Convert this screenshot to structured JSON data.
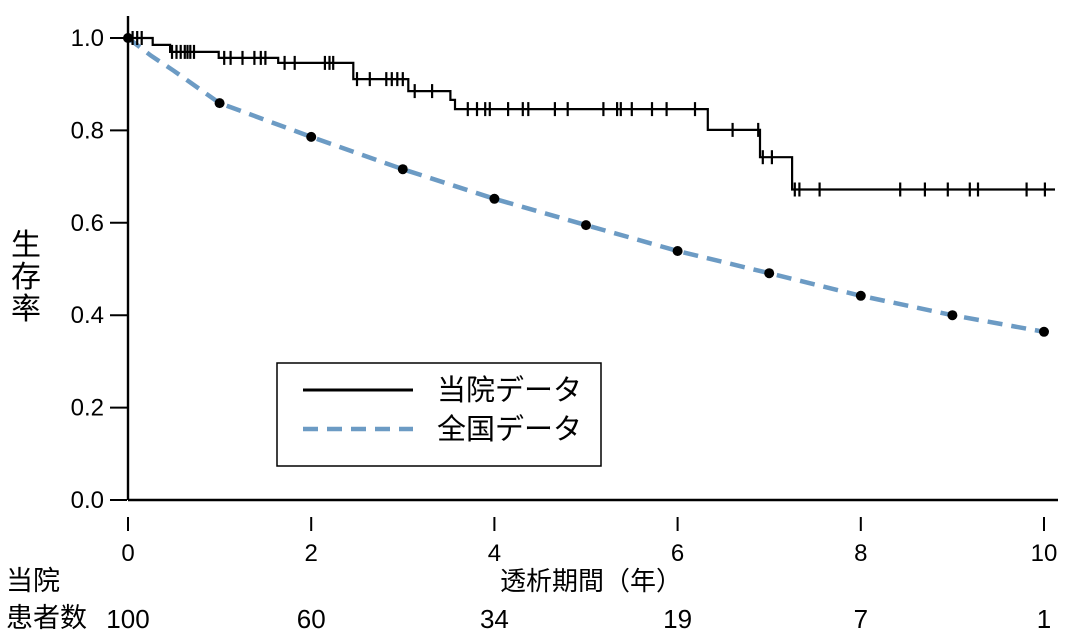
{
  "chart_data": {
    "type": "line",
    "subtype": "kaplan_meier_survival",
    "title": "",
    "xlabel": "透析期間（年）",
    "ylabel": "生存率",
    "xlim": [
      0,
      10.3
    ],
    "ylim": [
      0.0,
      1.04
    ],
    "grid": false,
    "legend_position": "inside-lower-left-box",
    "x_ticks": [
      0,
      2,
      4,
      6,
      8,
      10
    ],
    "x_tick_labels": [
      "0",
      "2",
      "4",
      "6",
      "8",
      "10"
    ],
    "y_ticks": [
      0.0,
      0.2,
      0.4,
      0.6,
      0.8,
      1.0
    ],
    "y_tick_labels": [
      "0.0",
      "0.2",
      "0.4",
      "0.6",
      "0.8",
      "1.0"
    ],
    "series": [
      {
        "name": "当院データ",
        "kind": "step",
        "line_style": "solid",
        "color": "#000000",
        "steps": [
          [
            0.0,
            1.0
          ],
          [
            0.27,
            0.985
          ],
          [
            0.46,
            0.97
          ],
          [
            0.99,
            0.957
          ],
          [
            1.64,
            0.946
          ],
          [
            2.46,
            0.911
          ],
          [
            3.06,
            0.885
          ],
          [
            3.52,
            0.866
          ],
          [
            3.57,
            0.846
          ],
          [
            6.33,
            0.801
          ],
          [
            6.9,
            0.742
          ],
          [
            7.25,
            0.672
          ]
        ],
        "end_x": 10.12,
        "censor_marks": [
          [
            0.05,
            1.0
          ],
          [
            0.1,
            1.0
          ],
          [
            0.15,
            1.0
          ],
          [
            0.48,
            0.97
          ],
          [
            0.53,
            0.97
          ],
          [
            0.575,
            0.97
          ],
          [
            0.62,
            0.97
          ],
          [
            0.65,
            0.97
          ],
          [
            0.68,
            0.97
          ],
          [
            0.72,
            0.97
          ],
          [
            1.05,
            0.957
          ],
          [
            1.12,
            0.957
          ],
          [
            1.25,
            0.957
          ],
          [
            1.38,
            0.957
          ],
          [
            1.45,
            0.957
          ],
          [
            1.5,
            0.957
          ],
          [
            1.71,
            0.946
          ],
          [
            1.82,
            0.946
          ],
          [
            2.15,
            0.946
          ],
          [
            2.2,
            0.946
          ],
          [
            2.24,
            0.946
          ],
          [
            2.5,
            0.911
          ],
          [
            2.64,
            0.911
          ],
          [
            2.82,
            0.911
          ],
          [
            2.88,
            0.911
          ],
          [
            2.94,
            0.911
          ],
          [
            3.0,
            0.911
          ],
          [
            3.13,
            0.885
          ],
          [
            3.32,
            0.885
          ],
          [
            3.71,
            0.846
          ],
          [
            3.81,
            0.846
          ],
          [
            3.9,
            0.846
          ],
          [
            3.95,
            0.846
          ],
          [
            4.15,
            0.846
          ],
          [
            4.31,
            0.846
          ],
          [
            4.37,
            0.846
          ],
          [
            4.66,
            0.846
          ],
          [
            4.8,
            0.846
          ],
          [
            5.19,
            0.846
          ],
          [
            5.34,
            0.846
          ],
          [
            5.38,
            0.846
          ],
          [
            5.5,
            0.846
          ],
          [
            5.72,
            0.846
          ],
          [
            5.88,
            0.846
          ],
          [
            6.19,
            0.846
          ],
          [
            6.6,
            0.801
          ],
          [
            6.88,
            0.801
          ],
          [
            6.93,
            0.742
          ],
          [
            7.03,
            0.742
          ],
          [
            7.28,
            0.672
          ],
          [
            7.33,
            0.672
          ],
          [
            7.55,
            0.672
          ],
          [
            8.43,
            0.672
          ],
          [
            8.7,
            0.672
          ],
          [
            8.95,
            0.672
          ],
          [
            9.19,
            0.672
          ],
          [
            9.28,
            0.672
          ],
          [
            9.81,
            0.672
          ],
          [
            10.01,
            0.672
          ]
        ]
      },
      {
        "name": "全国データ",
        "kind": "line",
        "line_style": "dashed",
        "color": "#6C9BC4",
        "marker": "dot",
        "marker_color": "#000000",
        "points": [
          [
            0.0,
            1.0,
            1
          ],
          [
            0.25,
            0.962,
            0
          ],
          [
            0.5,
            0.929,
            0
          ],
          [
            0.75,
            0.894,
            0
          ],
          [
            1,
            0.859,
            1
          ],
          [
            2,
            0.786,
            1
          ],
          [
            3,
            0.716,
            1
          ],
          [
            4,
            0.652,
            1
          ],
          [
            5,
            0.595,
            1
          ],
          [
            6,
            0.539,
            1
          ],
          [
            7,
            0.491,
            1
          ],
          [
            8,
            0.442,
            1
          ],
          [
            9,
            0.4,
            1
          ],
          [
            10,
            0.364,
            1
          ]
        ]
      }
    ],
    "risk_table": {
      "label_line1": "当院",
      "label_line2": "患者数",
      "times": [
        0,
        2,
        4,
        6,
        8,
        10
      ],
      "counts": [
        100,
        60,
        34,
        19,
        7,
        1
      ]
    }
  }
}
